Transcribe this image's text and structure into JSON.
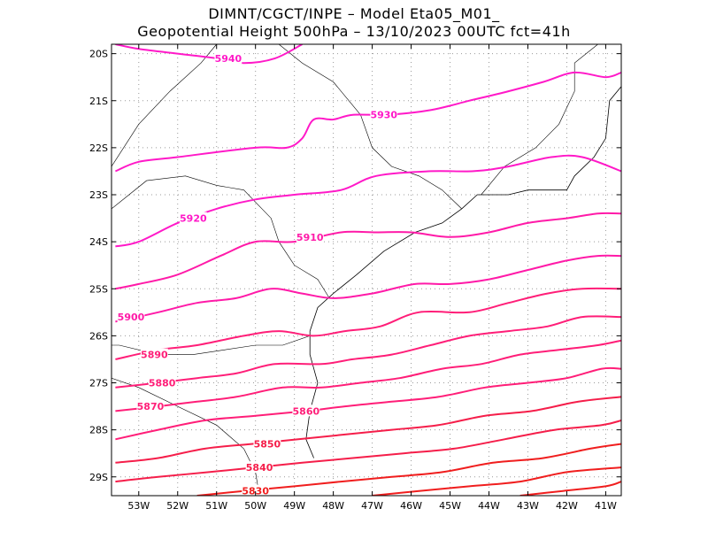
{
  "header": {
    "line1": "DIMNT/CGCT/INPE –  Model Eta05_M01_",
    "line2": "Geopotential Height 500hPa –  13/10/2023 00UTC fct=41h"
  },
  "axes": {
    "lat_ticks": [
      "20S",
      "21S",
      "22S",
      "23S",
      "24S",
      "25S",
      "26S",
      "27S",
      "28S",
      "29S"
    ],
    "lon_ticks": [
      "53W",
      "52W",
      "51W",
      "50W",
      "49W",
      "48W",
      "47W",
      "46W",
      "45W",
      "44W",
      "43W",
      "42W",
      "41W"
    ]
  },
  "colors": {
    "high": "#ff19c8",
    "mid": "#ff1e78",
    "low": "#f01e1e",
    "coast": "#000000",
    "grid": "#999999"
  },
  "chart_data": {
    "type": "contour-map",
    "variable": "Geopotential Height 500hPa",
    "extent": {
      "lon": [
        -53.7,
        -40.6
      ],
      "lat": [
        -29.4,
        -19.8
      ]
    },
    "contours": [
      {
        "value": 5940,
        "label": "5940",
        "label_at": [
          -50.7,
          -20.1
        ],
        "points": [
          [
            -53.6,
            -19.8
          ],
          [
            -53.0,
            -19.9
          ],
          [
            -52.0,
            -20.0
          ],
          [
            -51.0,
            -20.1
          ],
          [
            -50.3,
            -20.2
          ],
          [
            -49.5,
            -20.1
          ],
          [
            -48.8,
            -19.8
          ]
        ]
      },
      {
        "value": 5930,
        "label": "5930",
        "label_at": [
          -46.7,
          -21.3
        ],
        "points": [
          [
            -53.6,
            -22.5
          ],
          [
            -53.0,
            -22.3
          ],
          [
            -52.0,
            -22.2
          ],
          [
            -50.0,
            -22.0
          ],
          [
            -49.2,
            -22.0
          ],
          [
            -48.8,
            -21.8
          ],
          [
            -48.5,
            -21.4
          ],
          [
            -48.0,
            -21.4
          ],
          [
            -47.5,
            -21.3
          ],
          [
            -46.6,
            -21.3
          ],
          [
            -45.5,
            -21.2
          ],
          [
            -44.5,
            -21.0
          ],
          [
            -43.5,
            -20.8
          ],
          [
            -42.6,
            -20.6
          ],
          [
            -41.8,
            -20.4
          ],
          [
            -41.0,
            -20.5
          ],
          [
            -40.6,
            -20.4
          ]
        ]
      },
      {
        "value": 5920,
        "label": "5920",
        "label_at": [
          -51.6,
          -23.5
        ],
        "points": [
          [
            -53.6,
            -24.1
          ],
          [
            -53.0,
            -24.0
          ],
          [
            -52.0,
            -23.6
          ],
          [
            -51.0,
            -23.3
          ],
          [
            -50.0,
            -23.1
          ],
          [
            -49.0,
            -23.0
          ],
          [
            -47.8,
            -22.9
          ],
          [
            -46.9,
            -22.6
          ],
          [
            -45.5,
            -22.5
          ],
          [
            -44.4,
            -22.5
          ],
          [
            -43.5,
            -22.4
          ],
          [
            -42.4,
            -22.2
          ],
          [
            -41.6,
            -22.2
          ],
          [
            -40.6,
            -22.5
          ]
        ]
      },
      {
        "value": 5910,
        "label": "5910",
        "label_at": [
          -48.6,
          -23.9
        ],
        "points": [
          [
            -53.6,
            -25.0
          ],
          [
            -53.0,
            -24.9
          ],
          [
            -52.0,
            -24.7
          ],
          [
            -50.9,
            -24.3
          ],
          [
            -50.0,
            -24.0
          ],
          [
            -49.0,
            -24.0
          ],
          [
            -47.8,
            -23.8
          ],
          [
            -46.9,
            -23.8
          ],
          [
            -46.0,
            -23.8
          ],
          [
            -45.0,
            -23.9
          ],
          [
            -44.0,
            -23.8
          ],
          [
            -43.0,
            -23.6
          ],
          [
            -42.0,
            -23.5
          ],
          [
            -41.2,
            -23.4
          ],
          [
            -40.6,
            -23.4
          ]
        ]
      },
      {
        "value": 5900,
        "label": "5900",
        "label_at": [
          -53.2,
          -25.6
        ],
        "points": [
          [
            -53.6,
            -25.7
          ],
          [
            -52.5,
            -25.5
          ],
          [
            -51.5,
            -25.3
          ],
          [
            -50.5,
            -25.2
          ],
          [
            -49.6,
            -25.0
          ],
          [
            -48.8,
            -25.1
          ],
          [
            -48.0,
            -25.2
          ],
          [
            -47.0,
            -25.1
          ],
          [
            -45.9,
            -24.9
          ],
          [
            -45.0,
            -24.9
          ],
          [
            -44.0,
            -24.8
          ],
          [
            -43.0,
            -24.6
          ],
          [
            -42.0,
            -24.4
          ],
          [
            -41.2,
            -24.3
          ],
          [
            -40.6,
            -24.3
          ]
        ]
      },
      {
        "value": 5890,
        "label": "5890",
        "label_at": [
          -52.6,
          -26.4
        ],
        "points": [
          [
            -53.6,
            -26.5
          ],
          [
            -52.5,
            -26.3
          ],
          [
            -51.5,
            -26.2
          ],
          [
            -50.3,
            -26.0
          ],
          [
            -49.4,
            -25.9
          ],
          [
            -48.5,
            -26.0
          ],
          [
            -47.7,
            -25.9
          ],
          [
            -46.8,
            -25.8
          ],
          [
            -45.8,
            -25.5
          ],
          [
            -44.5,
            -25.5
          ],
          [
            -43.5,
            -25.3
          ],
          [
            -42.5,
            -25.1
          ],
          [
            -41.6,
            -25.0
          ],
          [
            -40.6,
            -25.0
          ]
        ]
      },
      {
        "value": 5880,
        "label": "5880",
        "label_at": [
          -52.4,
          -27.0
        ],
        "points": [
          [
            -53.6,
            -27.1
          ],
          [
            -52.5,
            -27.0
          ],
          [
            -51.5,
            -26.9
          ],
          [
            -50.5,
            -26.8
          ],
          [
            -49.5,
            -26.6
          ],
          [
            -48.3,
            -26.6
          ],
          [
            -47.5,
            -26.5
          ],
          [
            -46.5,
            -26.4
          ],
          [
            -45.5,
            -26.2
          ],
          [
            -44.5,
            -26.0
          ],
          [
            -43.5,
            -25.9
          ],
          [
            -42.5,
            -25.8
          ],
          [
            -41.6,
            -25.6
          ],
          [
            -40.6,
            -25.6
          ]
        ]
      },
      {
        "value": 5870,
        "label": "5870",
        "label_at": [
          -52.7,
          -27.5
        ],
        "points": [
          [
            -53.6,
            -27.6
          ],
          [
            -52.5,
            -27.5
          ],
          [
            -51.5,
            -27.4
          ],
          [
            -50.5,
            -27.3
          ],
          [
            -49.3,
            -27.1
          ],
          [
            -48.3,
            -27.1
          ],
          [
            -47.3,
            -27.0
          ],
          [
            -46.3,
            -26.9
          ],
          [
            -45.2,
            -26.7
          ],
          [
            -44.2,
            -26.6
          ],
          [
            -43.2,
            -26.4
          ],
          [
            -42.2,
            -26.3
          ],
          [
            -41.2,
            -26.2
          ],
          [
            -40.6,
            -26.1
          ]
        ]
      },
      {
        "value": 5860,
        "label": "5860",
        "label_at": [
          -48.7,
          -27.6
        ],
        "points": [
          [
            -53.6,
            -28.2
          ],
          [
            -52.5,
            -28.0
          ],
          [
            -51.3,
            -27.8
          ],
          [
            -50.0,
            -27.7
          ],
          [
            -48.7,
            -27.6
          ],
          [
            -47.7,
            -27.5
          ],
          [
            -46.5,
            -27.4
          ],
          [
            -45.3,
            -27.3
          ],
          [
            -44.1,
            -27.1
          ],
          [
            -43.0,
            -27.0
          ],
          [
            -42.0,
            -26.9
          ],
          [
            -41.1,
            -26.7
          ],
          [
            -40.6,
            -26.7
          ]
        ]
      },
      {
        "value": 5850,
        "label": "5850",
        "label_at": [
          -49.7,
          -28.3
        ],
        "points": [
          [
            -53.6,
            -28.7
          ],
          [
            -52.5,
            -28.6
          ],
          [
            -51.3,
            -28.4
          ],
          [
            -50.1,
            -28.3
          ],
          [
            -48.9,
            -28.2
          ],
          [
            -47.7,
            -28.1
          ],
          [
            -46.5,
            -28.0
          ],
          [
            -45.3,
            -27.9
          ],
          [
            -44.1,
            -27.7
          ],
          [
            -42.9,
            -27.6
          ],
          [
            -41.7,
            -27.4
          ],
          [
            -40.6,
            -27.3
          ]
        ]
      },
      {
        "value": 5840,
        "label": "5840",
        "label_at": [
          -49.9,
          -28.8
        ],
        "points": [
          [
            -53.6,
            -29.1
          ],
          [
            -52.5,
            -29.0
          ],
          [
            -51.2,
            -28.9
          ],
          [
            -50.0,
            -28.8
          ],
          [
            -48.8,
            -28.7
          ],
          [
            -47.5,
            -28.6
          ],
          [
            -46.2,
            -28.5
          ],
          [
            -44.9,
            -28.4
          ],
          [
            -43.6,
            -28.2
          ],
          [
            -42.3,
            -28.0
          ],
          [
            -41.1,
            -27.9
          ],
          [
            -40.6,
            -27.8
          ]
        ]
      },
      {
        "value": 5830,
        "label": "5830",
        "label_at": [
          -50.0,
          -29.3
        ],
        "points": [
          [
            -51.5,
            -29.4
          ],
          [
            -50.3,
            -29.3
          ],
          [
            -49.0,
            -29.2
          ],
          [
            -47.8,
            -29.1
          ],
          [
            -46.5,
            -29.0
          ],
          [
            -45.2,
            -28.9
          ],
          [
            -43.9,
            -28.7
          ],
          [
            -42.6,
            -28.6
          ],
          [
            -41.4,
            -28.4
          ],
          [
            -40.6,
            -28.3
          ]
        ]
      },
      {
        "value": 5820,
        "label": "",
        "label_at": null,
        "points": [
          [
            -47.0,
            -29.4
          ],
          [
            -45.8,
            -29.3
          ],
          [
            -44.5,
            -29.2
          ],
          [
            -43.2,
            -29.1
          ],
          [
            -42.0,
            -28.9
          ],
          [
            -40.6,
            -28.8
          ]
        ]
      },
      {
        "value": 5810,
        "label": "",
        "label_at": null,
        "points": [
          [
            -43.2,
            -29.4
          ],
          [
            -42.1,
            -29.3
          ],
          [
            -41.0,
            -29.2
          ],
          [
            -40.6,
            -29.1
          ]
        ]
      }
    ],
    "coastline": [
      [
        -48.5,
        -28.6
      ],
      [
        -48.7,
        -28.2
      ],
      [
        -48.6,
        -27.6
      ],
      [
        -48.4,
        -27.0
      ],
      [
        -48.6,
        -26.4
      ],
      [
        -48.6,
        -25.9
      ],
      [
        -48.4,
        -25.4
      ],
      [
        -48.0,
        -25.1
      ],
      [
        -47.4,
        -24.7
      ],
      [
        -46.7,
        -24.2
      ],
      [
        -45.9,
        -23.8
      ],
      [
        -45.2,
        -23.6
      ],
      [
        -44.7,
        -23.3
      ],
      [
        -44.3,
        -23.0
      ],
      [
        -43.5,
        -23.0
      ],
      [
        -43.0,
        -22.9
      ],
      [
        -42.0,
        -22.9
      ],
      [
        -41.8,
        -22.6
      ],
      [
        -41.3,
        -22.2
      ],
      [
        -41.0,
        -21.8
      ],
      [
        -40.9,
        -21.0
      ],
      [
        -40.6,
        -20.7
      ]
    ],
    "borders": [
      [
        [
          -49.9,
          -29.4
        ],
        [
          -50.0,
          -28.9
        ],
        [
          -50.3,
          -28.4
        ],
        [
          -51.0,
          -27.9
        ],
        [
          -52.0,
          -27.5
        ],
        [
          -53.0,
          -27.1
        ],
        [
          -53.7,
          -26.9
        ]
      ],
      [
        [
          -48.6,
          -26.0
        ],
        [
          -49.3,
          -26.2
        ],
        [
          -50.0,
          -26.2
        ],
        [
          -50.8,
          -26.3
        ],
        [
          -51.6,
          -26.4
        ],
        [
          -52.5,
          -26.4
        ],
        [
          -53.5,
          -26.2
        ],
        [
          -53.7,
          -26.2
        ]
      ],
      [
        [
          -48.1,
          -25.2
        ],
        [
          -48.4,
          -24.8
        ],
        [
          -49.0,
          -24.5
        ],
        [
          -49.4,
          -24.0
        ],
        [
          -49.6,
          -23.5
        ],
        [
          -50.3,
          -22.9
        ],
        [
          -51.0,
          -22.8
        ],
        [
          -51.8,
          -22.6
        ],
        [
          -52.8,
          -22.7
        ],
        [
          -53.7,
          -23.3
        ]
      ],
      [
        [
          -53.7,
          -22.4
        ],
        [
          -53.0,
          -21.5
        ],
        [
          -52.2,
          -20.8
        ],
        [
          -51.4,
          -20.2
        ],
        [
          -51.0,
          -19.8
        ]
      ],
      [
        [
          -44.7,
          -23.3
        ],
        [
          -45.2,
          -22.9
        ],
        [
          -45.8,
          -22.6
        ],
        [
          -46.5,
          -22.4
        ],
        [
          -47.0,
          -22.0
        ],
        [
          -47.3,
          -21.3
        ],
        [
          -48.0,
          -20.6
        ],
        [
          -48.8,
          -20.2
        ],
        [
          -49.4,
          -19.8
        ]
      ],
      [
        [
          -44.2,
          -23.0
        ],
        [
          -43.6,
          -22.4
        ],
        [
          -42.8,
          -22.0
        ],
        [
          -42.2,
          -21.5
        ],
        [
          -41.8,
          -20.8
        ],
        [
          -41.8,
          -20.2
        ],
        [
          -41.2,
          -19.8
        ]
      ]
    ]
  }
}
